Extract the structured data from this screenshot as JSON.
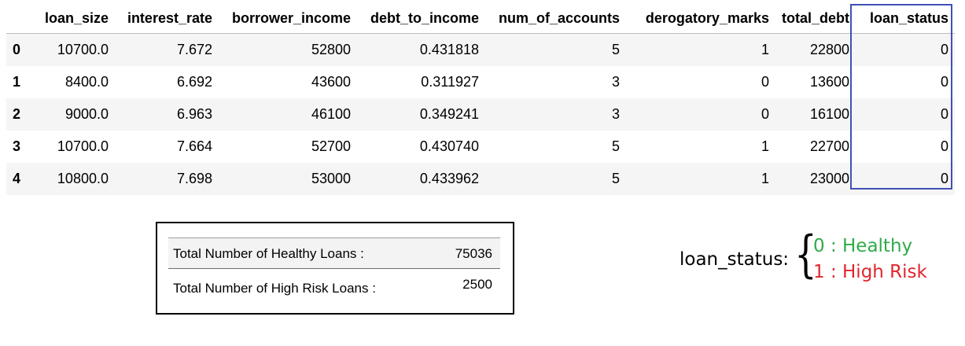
{
  "table": {
    "columns": [
      "",
      "loan_size",
      "interest_rate",
      "borrower_income",
      "debt_to_income",
      "num_of_accounts",
      "derogatory_marks",
      "total_debt",
      "loan_status"
    ],
    "rows": [
      {
        "index": "0",
        "cells": [
          "10700.0",
          "7.672",
          "52800",
          "0.431818",
          "5",
          "1",
          "22800",
          "0"
        ]
      },
      {
        "index": "1",
        "cells": [
          "8400.0",
          "6.692",
          "43600",
          "0.311927",
          "3",
          "0",
          "13600",
          "0"
        ]
      },
      {
        "index": "2",
        "cells": [
          "9000.0",
          "6.963",
          "46100",
          "0.349241",
          "3",
          "0",
          "16100",
          "0"
        ]
      },
      {
        "index": "3",
        "cells": [
          "10700.0",
          "7.664",
          "52700",
          "0.430740",
          "5",
          "1",
          "22700",
          "0"
        ]
      },
      {
        "index": "4",
        "cells": [
          "10800.0",
          "7.698",
          "53000",
          "0.433962",
          "5",
          "1",
          "23000",
          "0"
        ]
      }
    ],
    "highlight_color": "#3f51b5"
  },
  "summary": {
    "healthy_label": "Total Number of Healthy Loans :",
    "healthy_value": "75036",
    "risk_label": "Total Number of High Risk Loans :",
    "risk_value": "2500"
  },
  "legend": {
    "key": "loan_status:",
    "brace": "{",
    "healthy": "0 : Healthy",
    "risk": "1 : High Risk",
    "healthy_color": "#2eab4a",
    "risk_color": "#e0262e"
  }
}
